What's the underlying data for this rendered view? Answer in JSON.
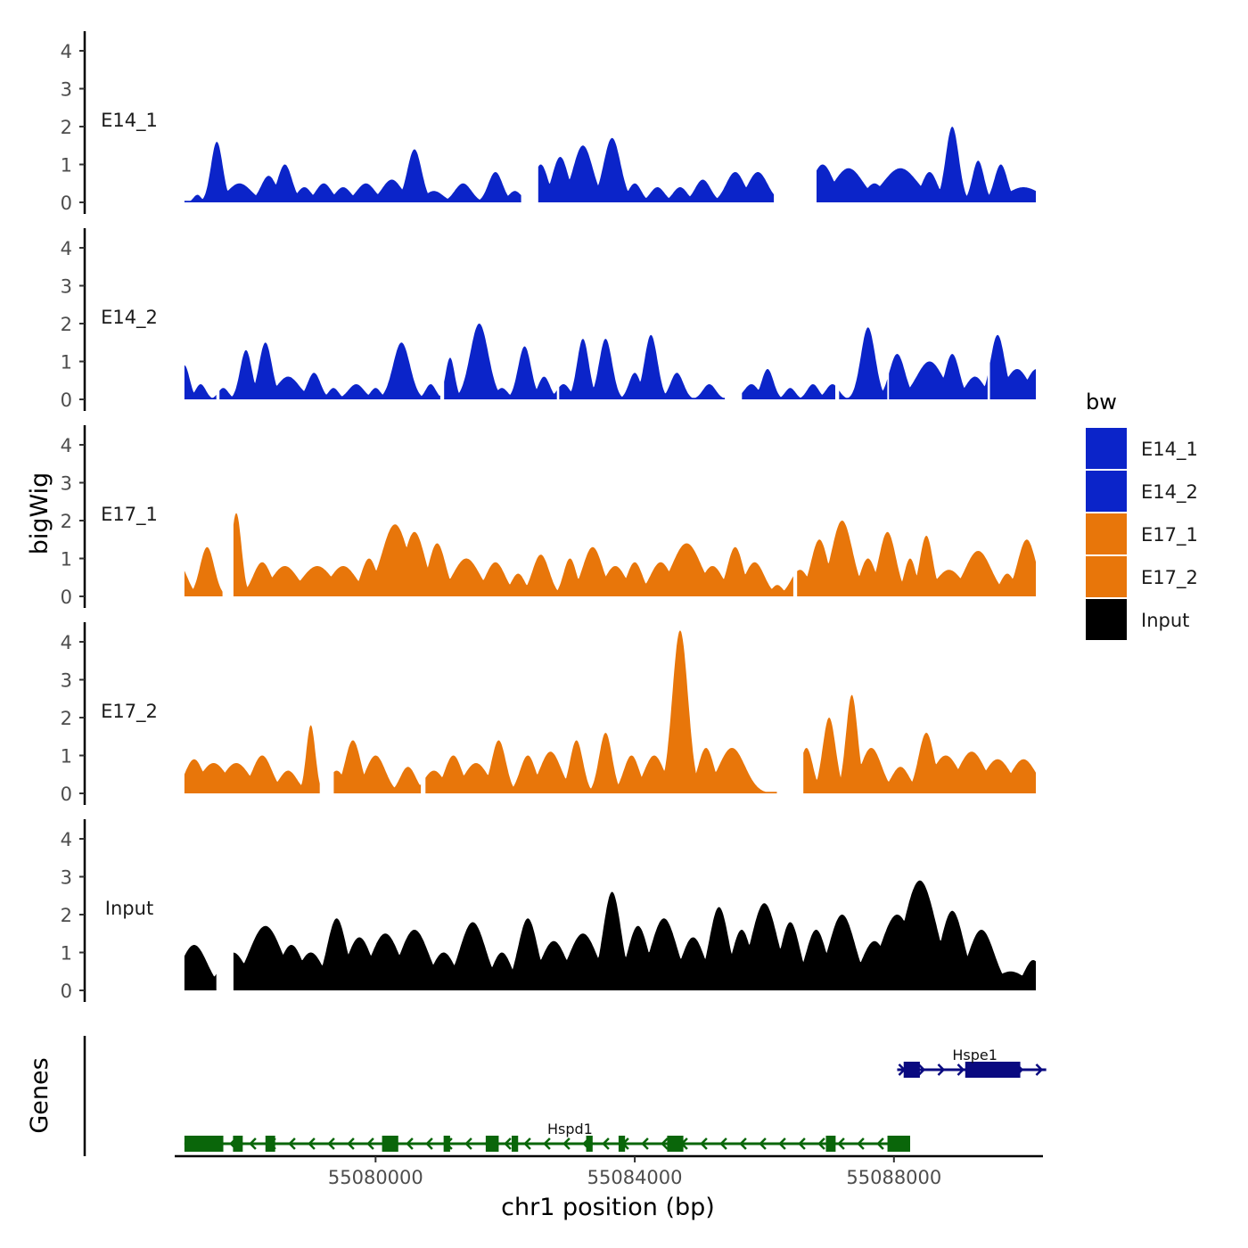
{
  "chart_data": {
    "type": "area",
    "ylabel": "bigWig",
    "xlabel": "chr1 position (bp)",
    "xlim": [
      55076900,
      55090300
    ],
    "x_ticks": [
      55080000,
      55084000,
      55088000
    ],
    "x_tick_labels": [
      "55080000",
      "55084000",
      "55088000"
    ],
    "ylim": [
      0,
      4.5
    ],
    "y_ticks": [
      0,
      1,
      2,
      3,
      4
    ],
    "y_tick_labels": [
      "0",
      "1",
      "2",
      "3",
      "4"
    ],
    "legend": {
      "title": "bw",
      "position": "right",
      "entries": [
        "E14_1",
        "E14_2",
        "E17_1",
        "E17_2",
        "Input"
      ],
      "colors": [
        "#0b24c9",
        "#0b24c9",
        "#e8760a",
        "#e8760a",
        "#000000"
      ]
    },
    "series": [
      {
        "name": "E14_1",
        "color": "#0b24c9",
        "peaks": [
          [
            55077250,
            0.2,
            60
          ],
          [
            55077550,
            1.6,
            90
          ],
          [
            55077900,
            0.5,
            180
          ],
          [
            55078350,
            0.7,
            120
          ],
          [
            55078600,
            1.0,
            110
          ],
          [
            55078900,
            0.4,
            110
          ],
          [
            55079200,
            0.5,
            120
          ],
          [
            55079500,
            0.4,
            120
          ],
          [
            55079850,
            0.5,
            140
          ],
          [
            55080250,
            0.6,
            150
          ],
          [
            55080600,
            1.4,
            110
          ],
          [
            55080900,
            0.3,
            140
          ],
          [
            55081350,
            0.5,
            130
          ],
          [
            55081850,
            0.8,
            110
          ],
          [
            55082150,
            0.3,
            100
          ],
          [
            55082550,
            1.0,
            110
          ],
          [
            55082850,
            1.2,
            120
          ],
          [
            55083200,
            1.5,
            150
          ],
          [
            55083650,
            1.7,
            130
          ],
          [
            55084000,
            0.5,
            100
          ],
          [
            55084350,
            0.4,
            110
          ],
          [
            55084700,
            0.4,
            110
          ],
          [
            55085050,
            0.6,
            120
          ],
          [
            55085550,
            0.8,
            140
          ],
          [
            55085900,
            0.8,
            150
          ],
          [
            55086900,
            1.0,
            160
          ],
          [
            55087300,
            0.9,
            220
          ],
          [
            55087700,
            0.5,
            140
          ],
          [
            55088100,
            0.9,
            260
          ],
          [
            55088550,
            0.8,
            120
          ],
          [
            55088900,
            2.0,
            100
          ],
          [
            55089300,
            1.1,
            90
          ],
          [
            55089650,
            1.0,
            100
          ],
          [
            55090000,
            0.4,
            250
          ]
        ]
      },
      {
        "name": "E14_2",
        "color": "#0b24c9",
        "peaks": [
          [
            55077050,
            0.9,
            80
          ],
          [
            55077300,
            0.4,
            80
          ],
          [
            55077650,
            0.3,
            80
          ],
          [
            55078000,
            1.3,
            90
          ],
          [
            55078300,
            1.5,
            100
          ],
          [
            55078650,
            0.6,
            170
          ],
          [
            55079050,
            0.7,
            100
          ],
          [
            55079350,
            0.3,
            80
          ],
          [
            55079700,
            0.4,
            120
          ],
          [
            55080000,
            0.3,
            80
          ],
          [
            55080400,
            1.5,
            130
          ],
          [
            55080850,
            0.4,
            80
          ],
          [
            55081150,
            1.1,
            70
          ],
          [
            55081600,
            2.0,
            140
          ],
          [
            55081950,
            0.3,
            90
          ],
          [
            55082300,
            1.4,
            100
          ],
          [
            55082600,
            0.6,
            90
          ],
          [
            55082900,
            0.4,
            100
          ],
          [
            55083200,
            1.6,
            90
          ],
          [
            55083550,
            1.6,
            100
          ],
          [
            55084000,
            0.7,
            90
          ],
          [
            55084250,
            1.7,
            100
          ],
          [
            55084650,
            0.7,
            100
          ],
          [
            55085150,
            0.4,
            100
          ],
          [
            55085800,
            0.4,
            110
          ],
          [
            55086050,
            0.8,
            90
          ],
          [
            55086400,
            0.3,
            80
          ],
          [
            55086750,
            0.4,
            90
          ],
          [
            55087050,
            0.4,
            100
          ],
          [
            55087600,
            1.9,
            110
          ],
          [
            55088050,
            1.2,
            120
          ],
          [
            55088550,
            1.0,
            200
          ],
          [
            55088900,
            1.2,
            110
          ],
          [
            55089250,
            0.6,
            140
          ],
          [
            55089600,
            1.7,
            110
          ],
          [
            55089900,
            0.8,
            170
          ],
          [
            55090200,
            0.8,
            150
          ]
        ]
      },
      {
        "name": "E17_1",
        "color": "#e8760a",
        "peaks": [
          [
            55076980,
            0.8,
            120
          ],
          [
            55077400,
            1.3,
            110
          ],
          [
            55077850,
            2.2,
            80
          ],
          [
            55078250,
            0.9,
            140
          ],
          [
            55078600,
            0.8,
            200
          ],
          [
            55079100,
            0.8,
            230
          ],
          [
            55079500,
            0.8,
            200
          ],
          [
            55079900,
            1.0,
            120
          ],
          [
            55080300,
            1.9,
            200
          ],
          [
            55080600,
            1.7,
            160
          ],
          [
            55080950,
            1.4,
            130
          ],
          [
            55081400,
            1.0,
            200
          ],
          [
            55081850,
            0.9,
            150
          ],
          [
            55082200,
            0.6,
            110
          ],
          [
            55082550,
            1.1,
            130
          ],
          [
            55083000,
            1.0,
            100
          ],
          [
            55083350,
            1.3,
            150
          ],
          [
            55083700,
            0.8,
            160
          ],
          [
            55084000,
            0.9,
            120
          ],
          [
            55084400,
            0.9,
            160
          ],
          [
            55084800,
            1.4,
            220
          ],
          [
            55085200,
            0.8,
            160
          ],
          [
            55085550,
            1.3,
            120
          ],
          [
            55085850,
            0.9,
            150
          ],
          [
            55086200,
            0.3,
            90
          ],
          [
            55086550,
            0.7,
            140
          ],
          [
            55086850,
            1.5,
            130
          ],
          [
            55087200,
            2.0,
            160
          ],
          [
            55087600,
            1.0,
            120
          ],
          [
            55087900,
            1.7,
            130
          ],
          [
            55088250,
            1.0,
            90
          ],
          [
            55088500,
            1.6,
            100
          ],
          [
            55088850,
            0.7,
            200
          ],
          [
            55089300,
            1.2,
            200
          ],
          [
            55089750,
            0.6,
            110
          ],
          [
            55090050,
            1.5,
            140
          ]
        ]
      },
      {
        "name": "E17_2",
        "color": "#e8760a",
        "peaks": [
          [
            55077200,
            0.9,
            140
          ],
          [
            55077500,
            0.8,
            200
          ],
          [
            55077850,
            0.8,
            200
          ],
          [
            55078250,
            1.0,
            150
          ],
          [
            55078650,
            0.6,
            140
          ],
          [
            55079000,
            1.8,
            70
          ],
          [
            55079400,
            0.6,
            120
          ],
          [
            55079650,
            1.4,
            120
          ],
          [
            55080000,
            1.0,
            150
          ],
          [
            55080500,
            0.7,
            120
          ],
          [
            55080900,
            0.6,
            150
          ],
          [
            55081200,
            1.0,
            130
          ],
          [
            55081550,
            0.8,
            180
          ],
          [
            55081900,
            1.4,
            110
          ],
          [
            55082350,
            1.0,
            120
          ],
          [
            55082700,
            1.1,
            160
          ],
          [
            55083100,
            1.4,
            100
          ],
          [
            55083550,
            1.6,
            100
          ],
          [
            55083950,
            1.0,
            120
          ],
          [
            55084300,
            1.0,
            150
          ],
          [
            55084700,
            4.3,
            120
          ],
          [
            55085100,
            1.2,
            120
          ],
          [
            55085500,
            1.2,
            200
          ],
          [
            55086650,
            1.2,
            100
          ],
          [
            55087000,
            2.0,
            100
          ],
          [
            55087350,
            2.6,
            90
          ],
          [
            55087650,
            1.2,
            160
          ],
          [
            55088100,
            0.7,
            140
          ],
          [
            55088500,
            1.6,
            120
          ],
          [
            55088800,
            1.0,
            200
          ],
          [
            55089200,
            1.1,
            200
          ],
          [
            55089600,
            0.9,
            200
          ],
          [
            55090000,
            0.9,
            190
          ]
        ]
      },
      {
        "name": "Input",
        "color": "#000000",
        "peaks": [
          [
            55077200,
            1.2,
            200
          ],
          [
            55077800,
            1.0,
            200
          ],
          [
            55078300,
            1.7,
            250
          ],
          [
            55078700,
            1.2,
            180
          ],
          [
            55079000,
            1.0,
            190
          ],
          [
            55079400,
            1.9,
            150
          ],
          [
            55079750,
            1.4,
            190
          ],
          [
            55080150,
            1.5,
            220
          ],
          [
            55080600,
            1.6,
            220
          ],
          [
            55081050,
            1.0,
            180
          ],
          [
            55081500,
            1.8,
            200
          ],
          [
            55081950,
            1.0,
            150
          ],
          [
            55082350,
            1.9,
            150
          ],
          [
            55082750,
            1.3,
            200
          ],
          [
            55083200,
            1.5,
            220
          ],
          [
            55083650,
            2.6,
            140
          ],
          [
            55084050,
            1.7,
            160
          ],
          [
            55084450,
            1.9,
            200
          ],
          [
            55084900,
            1.4,
            180
          ],
          [
            55085300,
            2.2,
            150
          ],
          [
            55085650,
            1.6,
            150
          ],
          [
            55086000,
            2.3,
            200
          ],
          [
            55086400,
            1.8,
            150
          ],
          [
            55086800,
            1.6,
            160
          ],
          [
            55087200,
            2.0,
            200
          ],
          [
            55087700,
            1.3,
            200
          ],
          [
            55088050,
            2.0,
            250
          ],
          [
            55088400,
            2.9,
            250
          ],
          [
            55088900,
            2.1,
            180
          ],
          [
            55089350,
            1.6,
            200
          ],
          [
            55089800,
            0.5,
            250
          ],
          [
            55090150,
            0.8,
            140
          ]
        ]
      }
    ],
    "gaps": {
      "E14_1": [
        [
          55082250,
          55082500
        ],
        [
          55086150,
          55086800
        ]
      ],
      "E14_2": [
        [
          55077550,
          55077580
        ],
        [
          55081000,
          55081050
        ],
        [
          55082800,
          55082830
        ],
        [
          55085400,
          55085650
        ],
        [
          55087100,
          55087150
        ],
        [
          55087900,
          55087920
        ],
        [
          55089450,
          55089480
        ]
      ],
      "E17_1": [
        [
          55077650,
          55077800
        ],
        [
          55086450,
          55086500
        ]
      ],
      "E17_2": [
        [
          55079150,
          55079350
        ],
        [
          55080700,
          55080760
        ],
        [
          55086200,
          55086600
        ]
      ],
      "Input": [
        [
          55077550,
          55077800
        ]
      ]
    },
    "genes_track": {
      "label": "Genes",
      "genes": [
        {
          "name": "Hspe1",
          "strand": "+",
          "color": "#0a0a80",
          "row": 1,
          "start": 55088050,
          "end": 55090350,
          "exons": [
            [
              55088150,
              55088400
            ],
            [
              55089100,
              55089950
            ]
          ]
        },
        {
          "name": "Hspd1",
          "strand": "-",
          "color": "#0a660a",
          "row": 2,
          "start": 55077050,
          "end": 55088250,
          "exons": [
            [
              55077050,
              55077650
            ],
            [
              55077800,
              55077950
            ],
            [
              55078300,
              55078450
            ],
            [
              55080100,
              55080350
            ],
            [
              55081050,
              55081150
            ],
            [
              55081700,
              55081900
            ],
            [
              55082100,
              55082200
            ],
            [
              55083250,
              55083350
            ],
            [
              55083750,
              55083850
            ],
            [
              55084500,
              55084750
            ],
            [
              55086950,
              55087100
            ],
            [
              55087900,
              55088250
            ]
          ]
        }
      ]
    }
  }
}
